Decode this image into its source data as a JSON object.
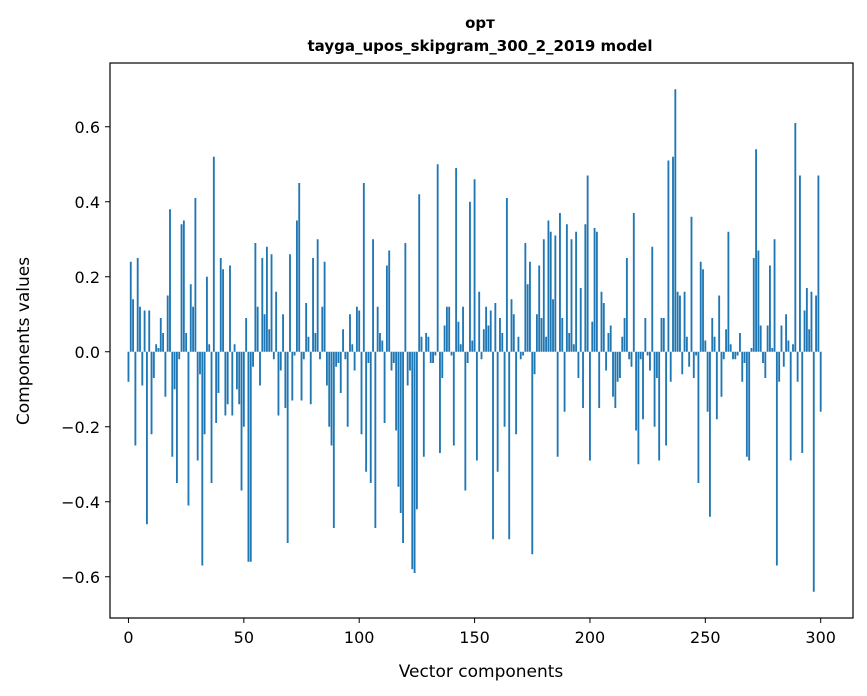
{
  "chart_data": {
    "type": "bar",
    "title": "орт",
    "subtitle": "tayga_upos_skipgram_300_2_2019 model",
    "xlabel": "Vector components",
    "ylabel": "Components values",
    "xlim": [
      -8,
      314
    ],
    "ylim": [
      -0.71,
      0.77
    ],
    "xticks": [
      0,
      50,
      100,
      150,
      200,
      250,
      300
    ],
    "yticks": [
      -0.6,
      -0.4,
      -0.2,
      0.0,
      0.2,
      0.4,
      0.6
    ],
    "ytick_labels": [
      "−0.6",
      "−0.4",
      "−0.2",
      "0.0",
      "0.2",
      "0.4",
      "0.6"
    ],
    "grid": false,
    "bar_color": "#1f77b4",
    "values": [
      -0.08,
      0.24,
      0.14,
      -0.25,
      0.25,
      0.12,
      -0.09,
      0.11,
      -0.46,
      0.11,
      -0.22,
      -0.07,
      0.02,
      0.01,
      0.09,
      0.05,
      -0.12,
      0.15,
      0.38,
      -0.28,
      -0.1,
      -0.35,
      -0.02,
      0.34,
      0.35,
      0.05,
      -0.41,
      0.18,
      0.12,
      0.41,
      -0.29,
      -0.06,
      -0.57,
      -0.22,
      0.2,
      0.02,
      -0.35,
      0.52,
      -0.19,
      -0.11,
      0.25,
      0.22,
      -0.17,
      -0.14,
      0.23,
      -0.17,
      0.02,
      -0.1,
      -0.14,
      -0.37,
      -0.2,
      0.09,
      -0.56,
      -0.56,
      -0.04,
      0.29,
      0.12,
      -0.09,
      0.25,
      0.1,
      0.28,
      0.06,
      0.26,
      -0.02,
      0.16,
      -0.17,
      -0.05,
      0.1,
      -0.15,
      -0.51,
      0.26,
      -0.13,
      -0.01,
      0.35,
      0.45,
      -0.13,
      -0.02,
      0.13,
      0.04,
      -0.14,
      0.25,
      0.05,
      0.3,
      -0.02,
      0.12,
      0.24,
      -0.09,
      -0.2,
      -0.25,
      -0.47,
      -0.04,
      -0.03,
      -0.11,
      0.06,
      -0.02,
      -0.2,
      0.1,
      0.02,
      -0.05,
      0.12,
      0.11,
      -0.22,
      0.45,
      -0.32,
      -0.03,
      -0.35,
      0.3,
      -0.47,
      0.12,
      0.05,
      0.03,
      -0.19,
      0.23,
      0.27,
      -0.05,
      -0.03,
      -0.21,
      -0.36,
      -0.43,
      -0.51,
      0.29,
      -0.09,
      -0.05,
      -0.58,
      -0.59,
      -0.42,
      0.42,
      0.04,
      -0.28,
      0.05,
      0.04,
      -0.03,
      -0.03,
      -0.01,
      0.5,
      -0.27,
      -0.07,
      0.07,
      0.12,
      0.12,
      -0.01,
      -0.25,
      0.49,
      0.08,
      0.02,
      0.12,
      -0.37,
      -0.03,
      0.4,
      0.03,
      0.46,
      -0.29,
      0.16,
      -0.02,
      0.06,
      0.12,
      0.07,
      0.11,
      -0.5,
      0.13,
      -0.32,
      0.09,
      0.05,
      -0.2,
      0.41,
      -0.5,
      0.14,
      0.1,
      -0.22,
      0.04,
      -0.02,
      -0.01,
      0.29,
      0.18,
      0.24,
      -0.54,
      -0.06,
      0.1,
      0.23,
      0.09,
      0.3,
      0.04,
      0.35,
      0.32,
      0.14,
      0.31,
      -0.28,
      0.37,
      0.09,
      -0.16,
      0.34,
      0.05,
      0.3,
      0.02,
      0.32,
      -0.07,
      0.17,
      -0.15,
      0.34,
      0.47,
      -0.29,
      0.08,
      0.33,
      0.32,
      -0.15,
      0.16,
      0.13,
      -0.05,
      0.05,
      0.07,
      -0.12,
      -0.15,
      -0.08,
      -0.07,
      0.04,
      0.09,
      0.25,
      -0.02,
      -0.04,
      0.37,
      -0.21,
      -0.3,
      -0.02,
      -0.18,
      0.09,
      -0.01,
      -0.05,
      0.28,
      -0.2,
      -0.07,
      -0.29,
      0.09,
      0.09,
      -0.25,
      0.51,
      -0.08,
      0.52,
      0.7,
      0.16,
      0.15,
      -0.06,
      0.16,
      0.04,
      -0.04,
      0.36,
      -0.07,
      -0.01,
      -0.35,
      0.24,
      0.22,
      0.03,
      -0.16,
      -0.44,
      0.09,
      0.04,
      -0.18,
      0.15,
      -0.12,
      -0.02,
      0.06,
      0.32,
      0.02,
      -0.02,
      -0.02,
      -0.01,
      0.05,
      -0.08,
      -0.03,
      -0.28,
      -0.29,
      0.01,
      0.25,
      0.54,
      0.27,
      0.07,
      -0.03,
      -0.07,
      0.07,
      0.23,
      0.01,
      0.3,
      -0.57,
      -0.08,
      0.07,
      -0.04,
      0.1,
      0.03,
      -0.29,
      0.02,
      0.61,
      -0.08,
      0.47,
      -0.27,
      0.11,
      0.17,
      0.06,
      0.16,
      -0.64,
      0.15,
      0.47,
      -0.16
    ]
  }
}
